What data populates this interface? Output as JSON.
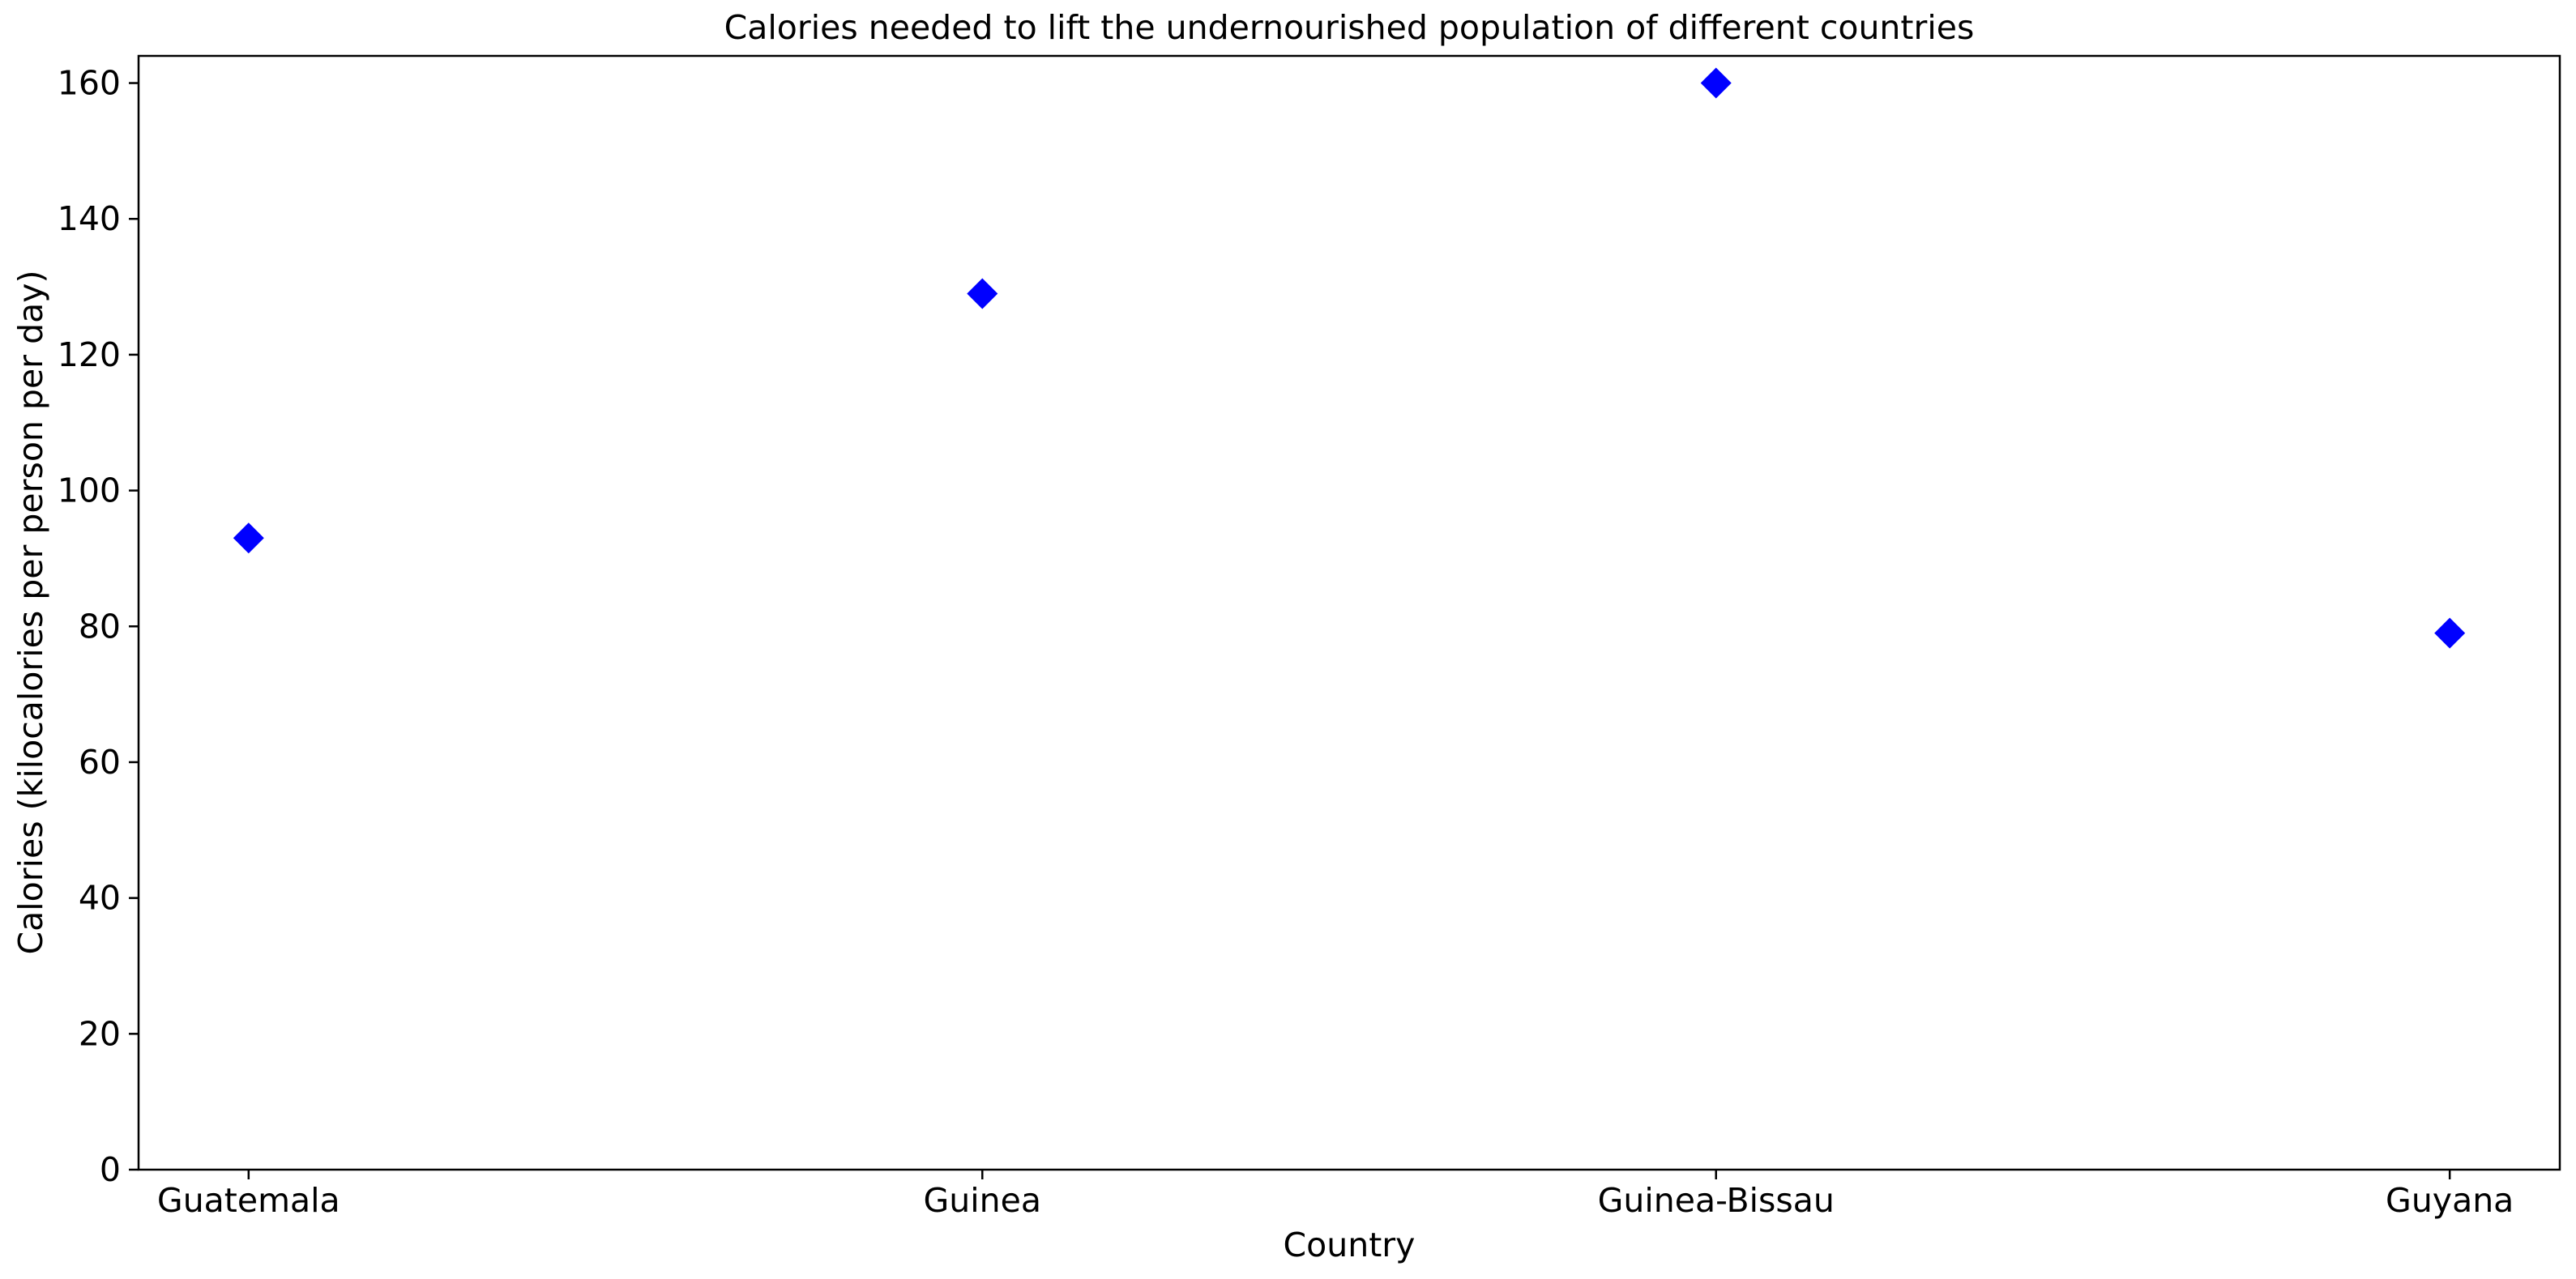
{
  "chart_data": {
    "type": "scatter",
    "title": "Calories needed to lift the undernourished population of different countries",
    "xlabel": "Country",
    "ylabel": "Calories (kilocalories per person per day)",
    "categories": [
      "Guatemala",
      "Guinea",
      "Guinea-Bissau",
      "Guyana"
    ],
    "series": [
      {
        "values": [
          93,
          129,
          160,
          79
        ],
        "color": "#0000ff",
        "marker": "diamond"
      }
    ],
    "ylim": [
      0,
      164
    ],
    "yticks": [
      0,
      20,
      40,
      60,
      80,
      100,
      120,
      140,
      160
    ],
    "grid": false,
    "legend": "none"
  }
}
